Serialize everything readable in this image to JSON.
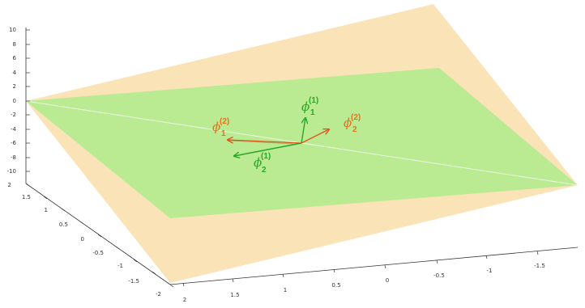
{
  "colors": {
    "plane_back": "#fbe2b4",
    "plane_front": "#b4ec8e",
    "vec_family_1": "#2aa626",
    "vec_family_2": "#e0531e",
    "label_family_2": "#e0731c",
    "axis": "#333333"
  },
  "axes": {
    "z_ticks": [
      "10",
      "8",
      "6",
      "4",
      "2",
      "0",
      "-2",
      "-4",
      "-6",
      "-8",
      "-10"
    ],
    "left_ticks": [
      "2",
      "1.5",
      "1",
      "0.5",
      "0",
      "-0.5",
      "-1",
      "-1.5",
      "-2"
    ],
    "bottom_ticks": [
      "2",
      "1.5",
      "1",
      "0.5",
      "0",
      "-0.5",
      "-1",
      "-1.5"
    ]
  },
  "vectors": {
    "phi_1_1": {
      "symbol": "ϕ",
      "sup": "(1)",
      "sub": "1"
    },
    "phi_2_1": {
      "symbol": "ϕ",
      "sup": "(1)",
      "sub": "2"
    },
    "phi_1_2": {
      "symbol": "ϕ",
      "sup": "(2)",
      "sub": "1"
    },
    "phi_2_2": {
      "symbol": "ϕ",
      "sup": "(2)",
      "sub": "2"
    }
  }
}
